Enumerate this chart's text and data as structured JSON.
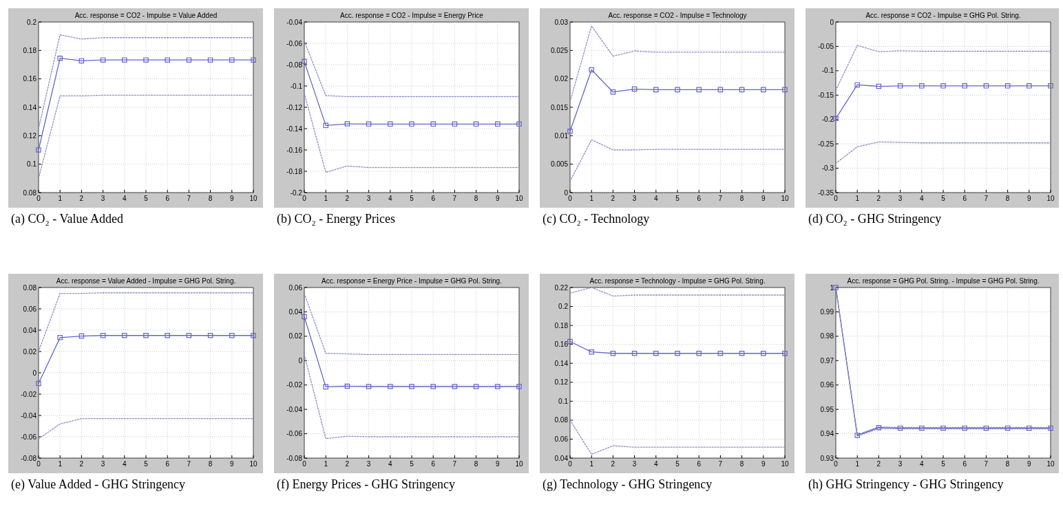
{
  "chart_data": [
    {
      "type": "line",
      "title": "Acc. response = CO2 - Impulse = Value Added",
      "annotations": [
        "(a) CO₂ - Value Added"
      ],
      "x": [
        0,
        1,
        2,
        3,
        4,
        5,
        6,
        7,
        8,
        9,
        10
      ],
      "xlim": [
        0,
        10
      ],
      "xticks": [
        0,
        1,
        2,
        3,
        4,
        5,
        6,
        7,
        8,
        9,
        10
      ],
      "ylim": [
        0.08,
        0.2
      ],
      "yticks": [
        0.08,
        0.1,
        0.12,
        0.14,
        0.16,
        0.18,
        0.2
      ],
      "grid": true,
      "series": [
        {
          "color": "#8c8cc8",
          "line_style": "dotted",
          "marker": "none",
          "values": [
            0.125,
            0.191,
            0.188,
            0.189,
            0.189,
            0.189,
            0.189,
            0.189,
            0.189,
            0.189,
            0.189
          ]
        },
        {
          "color": "#6464c8",
          "line_style": "solid",
          "marker": "square",
          "values": [
            0.11,
            0.1745,
            0.1727,
            0.1733,
            0.1733,
            0.1733,
            0.1733,
            0.1733,
            0.1733,
            0.1733,
            0.1733
          ]
        },
        {
          "color": "#8c8cc8",
          "line_style": "dotted",
          "marker": "none",
          "values": [
            0.09,
            0.148,
            0.148,
            0.1485,
            0.1485,
            0.1485,
            0.1485,
            0.1485,
            0.1485,
            0.1485,
            0.1485
          ]
        }
      ]
    },
    {
      "type": "line",
      "title": "Acc. response = CO2 - Impulse = Energy Price",
      "annotations": [
        "(b) CO₂ - Energy Prices"
      ],
      "x": [
        0,
        1,
        2,
        3,
        4,
        5,
        6,
        7,
        8,
        9,
        10
      ],
      "xlim": [
        0,
        10
      ],
      "xticks": [
        0,
        1,
        2,
        3,
        4,
        5,
        6,
        7,
        8,
        9,
        10
      ],
      "ylim": [
        -0.2,
        -0.04
      ],
      "yticks": [
        -0.2,
        -0.18,
        -0.16,
        -0.14,
        -0.12,
        -0.1,
        -0.08,
        -0.06,
        -0.04
      ],
      "grid": true,
      "series": [
        {
          "color": "#8c8cc8",
          "line_style": "dotted",
          "marker": "none",
          "values": [
            -0.058,
            -0.109,
            -0.11,
            -0.11,
            -0.11,
            -0.11,
            -0.11,
            -0.11,
            -0.11,
            -0.11,
            -0.11
          ]
        },
        {
          "color": "#6464c8",
          "line_style": "solid",
          "marker": "square",
          "values": [
            -0.077,
            -0.137,
            -0.1355,
            -0.1357,
            -0.1357,
            -0.1357,
            -0.1357,
            -0.1357,
            -0.1357,
            -0.1357,
            -0.1357
          ]
        },
        {
          "color": "#8c8cc8",
          "line_style": "dotted",
          "marker": "none",
          "values": [
            -0.107,
            -0.181,
            -0.175,
            -0.1765,
            -0.1765,
            -0.1765,
            -0.1765,
            -0.1765,
            -0.1765,
            -0.1765,
            -0.1765
          ]
        }
      ]
    },
    {
      "type": "line",
      "title": "Acc. response = CO2 - Impulse = Technology",
      "annotations": [
        "(c) CO₂ - Technology"
      ],
      "x": [
        0,
        1,
        2,
        3,
        4,
        5,
        6,
        7,
        8,
        9,
        10
      ],
      "xlim": [
        0,
        10
      ],
      "xticks": [
        0,
        1,
        2,
        3,
        4,
        5,
        6,
        7,
        8,
        9,
        10
      ],
      "ylim": [
        0,
        0.03
      ],
      "yticks": [
        0,
        0.005,
        0.01,
        0.015,
        0.02,
        0.025,
        0.03
      ],
      "grid": true,
      "series": [
        {
          "color": "#8c8cc8",
          "line_style": "dotted",
          "marker": "none",
          "values": [
            0.016,
            0.0293,
            0.024,
            0.0249,
            0.0247,
            0.0247,
            0.0247,
            0.0247,
            0.0247,
            0.0247,
            0.0247
          ]
        },
        {
          "color": "#6464c8",
          "line_style": "solid",
          "marker": "square",
          "values": [
            0.0108,
            0.0216,
            0.0177,
            0.0182,
            0.0181,
            0.0181,
            0.0181,
            0.0181,
            0.0181,
            0.0181,
            0.0181
          ]
        },
        {
          "color": "#8c8cc8",
          "line_style": "dotted",
          "marker": "none",
          "values": [
            0.002,
            0.0093,
            0.0075,
            0.0075,
            0.0076,
            0.0076,
            0.0076,
            0.0076,
            0.0076,
            0.0076,
            0.0076
          ]
        }
      ]
    },
    {
      "type": "line",
      "title": "Acc. response = CO2 - Impulse = GHG Pol. String.",
      "annotations": [
        "(d) CO₂ - GHG Stringency"
      ],
      "x": [
        0,
        1,
        2,
        3,
        4,
        5,
        6,
        7,
        8,
        9,
        10
      ],
      "xlim": [
        0,
        10
      ],
      "xticks": [
        0,
        1,
        2,
        3,
        4,
        5,
        6,
        7,
        8,
        9,
        10
      ],
      "ylim": [
        -0.35,
        0
      ],
      "yticks": [
        -0.35,
        -0.3,
        -0.25,
        -0.2,
        -0.15,
        -0.1,
        -0.05,
        0
      ],
      "grid": true,
      "series": [
        {
          "color": "#8c8cc8",
          "line_style": "dotted",
          "marker": "none",
          "values": [
            -0.14,
            -0.048,
            -0.061,
            -0.059,
            -0.06,
            -0.06,
            -0.06,
            -0.06,
            -0.06,
            -0.06,
            -0.06
          ]
        },
        {
          "color": "#6464c8",
          "line_style": "solid",
          "marker": "square",
          "values": [
            -0.198,
            -0.129,
            -0.132,
            -0.131,
            -0.131,
            -0.131,
            -0.131,
            -0.131,
            -0.131,
            -0.131,
            -0.131
          ]
        },
        {
          "color": "#8c8cc8",
          "line_style": "dotted",
          "marker": "none",
          "values": [
            -0.29,
            -0.256,
            -0.246,
            -0.247,
            -0.248,
            -0.248,
            -0.248,
            -0.248,
            -0.248,
            -0.248,
            -0.248
          ]
        }
      ]
    },
    {
      "type": "line",
      "title": "Acc. response = Value Added - Impulse = GHG Pol. String.",
      "annotations": [
        "(e) Value Added - GHG Stringency"
      ],
      "x": [
        0,
        1,
        2,
        3,
        4,
        5,
        6,
        7,
        8,
        9,
        10
      ],
      "xlim": [
        0,
        10
      ],
      "xticks": [
        0,
        1,
        2,
        3,
        4,
        5,
        6,
        7,
        8,
        9,
        10
      ],
      "ylim": [
        -0.08,
        0.08
      ],
      "yticks": [
        -0.08,
        -0.06,
        -0.04,
        -0.02,
        0,
        0.02,
        0.04,
        0.06,
        0.08
      ],
      "grid": true,
      "series": [
        {
          "color": "#8c8cc8",
          "line_style": "dotted",
          "marker": "none",
          "values": [
            0.02,
            0.0745,
            0.0745,
            0.075,
            0.075,
            0.075,
            0.075,
            0.075,
            0.075,
            0.075,
            0.075
          ]
        },
        {
          "color": "#6464c8",
          "line_style": "solid",
          "marker": "square",
          "values": [
            -0.01,
            0.033,
            0.0345,
            0.035,
            0.035,
            0.035,
            0.035,
            0.035,
            0.035,
            0.035,
            0.035
          ]
        },
        {
          "color": "#8c8cc8",
          "line_style": "dotted",
          "marker": "none",
          "values": [
            -0.062,
            -0.048,
            -0.043,
            -0.043,
            -0.043,
            -0.043,
            -0.043,
            -0.043,
            -0.043,
            -0.043,
            -0.043
          ]
        }
      ]
    },
    {
      "type": "line",
      "title": "Acc. response = Energy Price - Impulse = GHG Pol. String.",
      "annotations": [
        "(f) Energy Prices - GHG Stringency"
      ],
      "x": [
        0,
        1,
        2,
        3,
        4,
        5,
        6,
        7,
        8,
        9,
        10
      ],
      "xlim": [
        0,
        10
      ],
      "xticks": [
        0,
        1,
        2,
        3,
        4,
        5,
        6,
        7,
        8,
        9,
        10
      ],
      "ylim": [
        -0.08,
        0.06
      ],
      "yticks": [
        -0.08,
        -0.06,
        -0.04,
        -0.02,
        0,
        0.02,
        0.04,
        0.06
      ],
      "grid": true,
      "series": [
        {
          "color": "#8c8cc8",
          "line_style": "dotted",
          "marker": "none",
          "values": [
            0.055,
            0.006,
            0.0055,
            0.005,
            0.005,
            0.005,
            0.005,
            0.005,
            0.005,
            0.005,
            0.005
          ]
        },
        {
          "color": "#6464c8",
          "line_style": "solid",
          "marker": "square",
          "values": [
            0.036,
            -0.0215,
            -0.021,
            -0.0213,
            -0.0213,
            -0.0213,
            -0.0213,
            -0.0213,
            -0.0213,
            -0.0213,
            -0.0213
          ]
        },
        {
          "color": "#8c8cc8",
          "line_style": "dotted",
          "marker": "none",
          "values": [
            0.005,
            -0.064,
            -0.062,
            -0.0625,
            -0.0625,
            -0.0625,
            -0.0625,
            -0.0625,
            -0.0625,
            -0.0625,
            -0.0625
          ]
        }
      ]
    },
    {
      "type": "line",
      "title": "Acc. response = Technology - Impulse = GHG Pol. String.",
      "annotations": [
        "(g) Technology - GHG Stringency"
      ],
      "x": [
        0,
        1,
        2,
        3,
        4,
        5,
        6,
        7,
        8,
        9,
        10
      ],
      "xlim": [
        0,
        10
      ],
      "xticks": [
        0,
        1,
        2,
        3,
        4,
        5,
        6,
        7,
        8,
        9,
        10
      ],
      "ylim": [
        0.04,
        0.22
      ],
      "yticks": [
        0.04,
        0.06,
        0.08,
        0.1,
        0.12,
        0.14,
        0.16,
        0.18,
        0.2,
        0.22
      ],
      "grid": true,
      "series": [
        {
          "color": "#8c8cc8",
          "line_style": "dotted",
          "marker": "none",
          "values": [
            0.214,
            0.22,
            0.211,
            0.212,
            0.212,
            0.212,
            0.212,
            0.212,
            0.212,
            0.212,
            0.212
          ]
        },
        {
          "color": "#6464c8",
          "line_style": "solid",
          "marker": "square",
          "values": [
            0.163,
            0.152,
            0.1505,
            0.1505,
            0.1505,
            0.1505,
            0.1505,
            0.1505,
            0.1505,
            0.1505,
            0.1505
          ]
        },
        {
          "color": "#8c8cc8",
          "line_style": "dotted",
          "marker": "none",
          "values": [
            0.08,
            0.044,
            0.053,
            0.0515,
            0.0515,
            0.0515,
            0.0515,
            0.0515,
            0.0515,
            0.0515,
            0.0515
          ]
        }
      ]
    },
    {
      "type": "line",
      "title": "Acc. response = GHG Pol. String. - Impulse = GHG Pol. String.",
      "annotations": [
        "(h) GHG Stringency - GHG Stringency"
      ],
      "x": [
        0,
        1,
        2,
        3,
        4,
        5,
        6,
        7,
        8,
        9,
        10
      ],
      "xlim": [
        0,
        10
      ],
      "xticks": [
        0,
        1,
        2,
        3,
        4,
        5,
        6,
        7,
        8,
        9,
        10
      ],
      "ylim": [
        0.93,
        1
      ],
      "yticks": [
        0.93,
        0.94,
        0.95,
        0.96,
        0.97,
        0.98,
        0.99,
        1
      ],
      "grid": true,
      "series": [
        {
          "color": "#8c8cc8",
          "line_style": "dotted",
          "marker": "none",
          "values": [
            1,
            0.9396,
            0.9428,
            0.9426,
            0.9426,
            0.9426,
            0.9426,
            0.9426,
            0.9426,
            0.9426,
            0.9426
          ]
        },
        {
          "color": "#6464c8",
          "line_style": "solid",
          "marker": "square",
          "values": [
            1,
            0.9393,
            0.9425,
            0.9423,
            0.9423,
            0.9423,
            0.9423,
            0.9423,
            0.9423,
            0.9423,
            0.9423
          ]
        },
        {
          "color": "#8c8cc8",
          "line_style": "dotted",
          "marker": "none",
          "values": [
            1,
            0.939,
            0.9421,
            0.942,
            0.942,
            0.942,
            0.942,
            0.942,
            0.942,
            0.942,
            0.942
          ]
        }
      ]
    }
  ]
}
